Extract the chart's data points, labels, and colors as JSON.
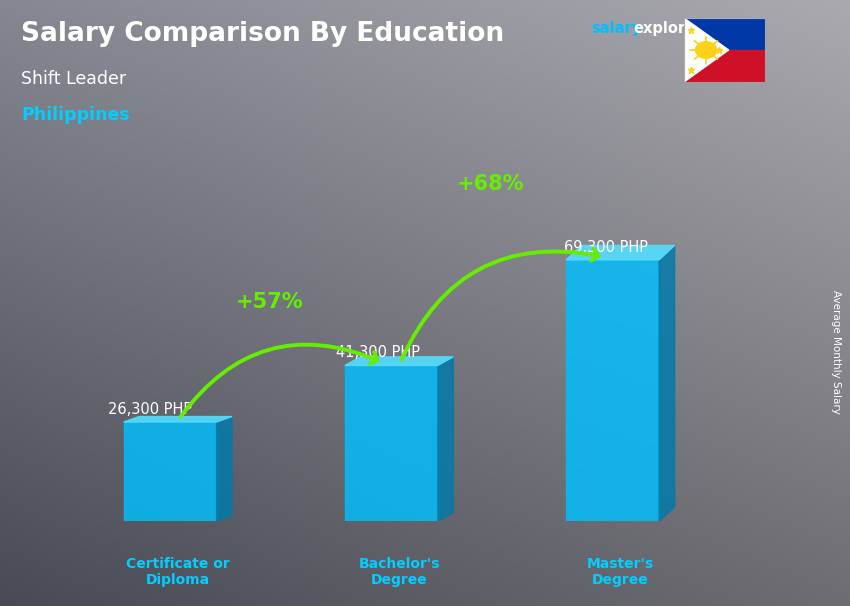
{
  "title_main": "Salary Comparison By Education",
  "title_sub1": "Shift Leader",
  "title_sub2": "Philippines",
  "ylabel": "Average Monthly Salary",
  "categories": [
    "Certificate or\nDiploma",
    "Bachelor's\nDegree",
    "Master's\nDegree"
  ],
  "values": [
    26300,
    41300,
    69300
  ],
  "labels": [
    "26,300 PHP",
    "41,300 PHP",
    "69,300 PHP"
  ],
  "pct_labels": [
    "+57%",
    "+68%"
  ],
  "bar_color_main": "#00BFFF",
  "bar_color_side": "#007AAA",
  "bar_color_top": "#55DDFF",
  "green_color": "#66EE00",
  "title_color": "#FFFFFF",
  "sub1_color": "#FFFFFF",
  "sub2_color": "#00CFFF",
  "label_color": "#FFFFFF",
  "pct_color": "#66EE00",
  "xtick_color": "#00CFFF",
  "website_color1": "#00BFFF",
  "website_color2": "#FFFFFF",
  "bg_color": "#4a4a5a",
  "ylim": [
    0,
    90000
  ],
  "bar_width": 0.42
}
